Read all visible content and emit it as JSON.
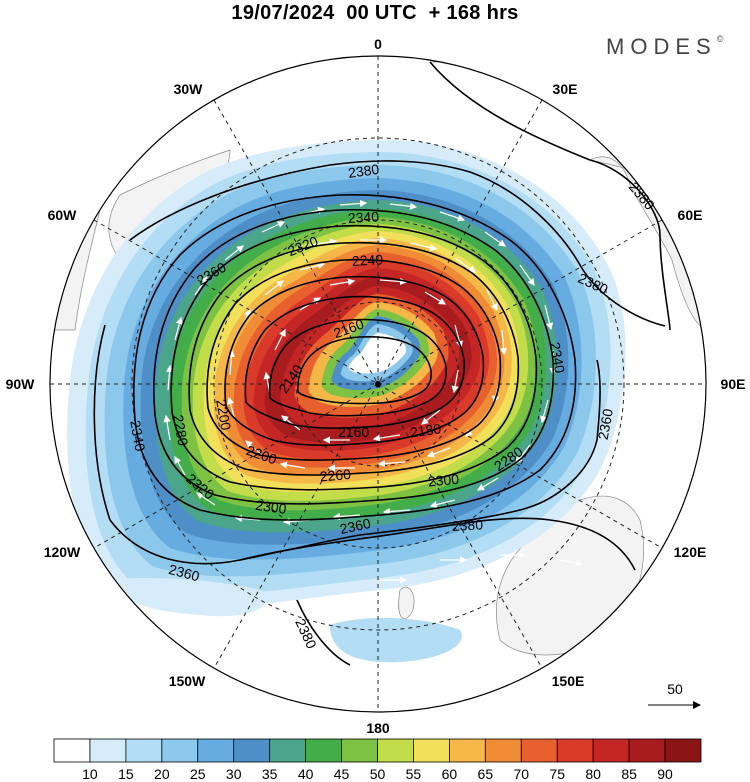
{
  "title": "19/07/2024  00 UTC  + 168 hrs",
  "brand": "MODES",
  "brand_mark": "©",
  "longitude_labels": {
    "n": "0",
    "ne": "30E",
    "e60": "60E",
    "e": "90E",
    "se120": "120E",
    "se150": "150E",
    "s": "180",
    "sw150": "150W",
    "sw120": "120W",
    "w": "90W",
    "w60": "60W",
    "nw": "30W"
  },
  "contour_labels": {
    "c2380_top": "2380",
    "c2380_ne": "2380",
    "c2380_e": "2380",
    "c2380_se": "2380",
    "c2380_s": "2380",
    "c2360_w": "2360",
    "c2360_sw": "2360",
    "c2360_e": "2360",
    "c2360_s": "2360",
    "c2340_w": "2340",
    "c2340_n": "2340",
    "c2340_e": "2340",
    "c2320_n": "2320",
    "c2320_sw": "2320",
    "c2300_s": "2300",
    "c2300_se": "2300",
    "c2280_w": "2280",
    "c2280_se": "2280",
    "c2260_s": "2260",
    "c2240_n": "2240",
    "c2200_w": "2200",
    "c2200_s": "2200",
    "c2180_s": "2180",
    "c2160_n": "2160",
    "c2160_s": "2160",
    "c2140_w": "2140"
  },
  "reference_vector": "50",
  "colorbar": {
    "ticks": [
      "10",
      "15",
      "20",
      "25",
      "30",
      "35",
      "40",
      "45",
      "50",
      "55",
      "60",
      "65",
      "70",
      "75",
      "80",
      "85",
      "90"
    ],
    "colors": [
      "#ffffff",
      "#d6ecfa",
      "#b3ddf5",
      "#8cc8ec",
      "#66ace0",
      "#4f8fc8",
      "#4aa58a",
      "#43ad4a",
      "#7ec243",
      "#c3dc4a",
      "#f2e05a",
      "#f5b848",
      "#f08c35",
      "#e8602e",
      "#d93a2a",
      "#c42626",
      "#a81c20",
      "#8b1515"
    ]
  }
}
